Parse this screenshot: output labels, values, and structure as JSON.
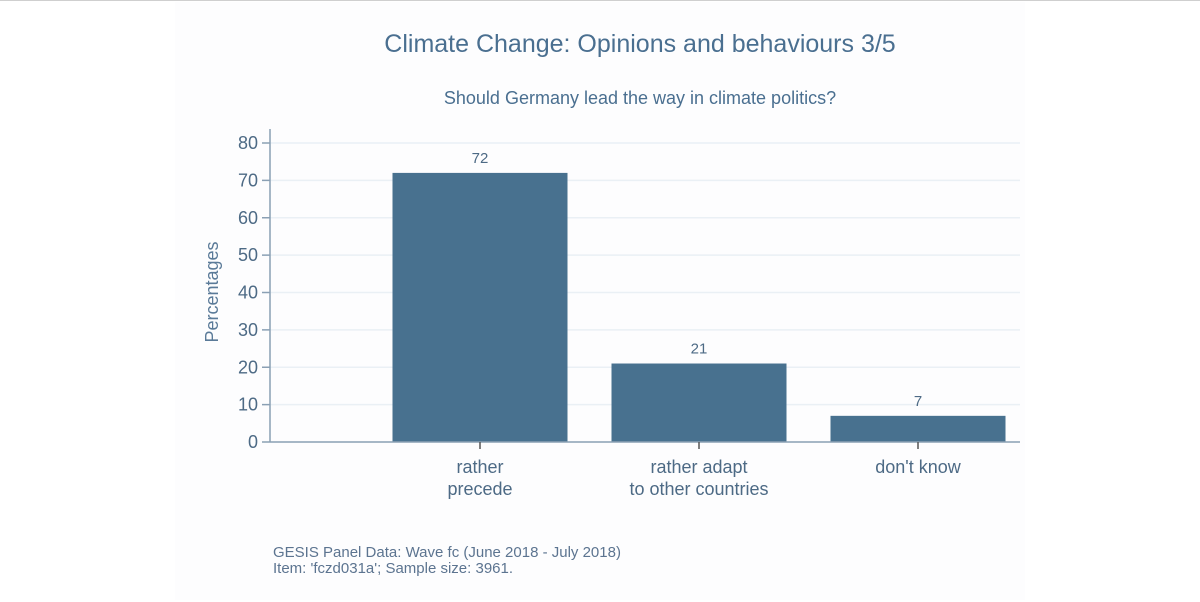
{
  "chart_data": {
    "type": "bar",
    "title": "Climate Change: Opinions and behaviours 3/5",
    "subtitle": "Should Germany lead the way in climate politics?",
    "xlabel": "",
    "ylabel": "Percentages",
    "ylim": [
      0,
      80
    ],
    "yticks": [
      0,
      10,
      20,
      30,
      40,
      50,
      60,
      70,
      80
    ],
    "grid": true,
    "categories": [
      [
        "rather",
        "precede"
      ],
      [
        "rather adapt",
        "to other countries"
      ],
      [
        "don't know"
      ]
    ],
    "values": [
      72,
      21,
      7
    ],
    "data_labels": [
      "72",
      "21",
      "7"
    ],
    "bar_color": "#48718f",
    "notes": [
      "GESIS Panel Data: Wave fc (June 2018 - July 2018)",
      "Item: 'fczd031a'; Sample size: 3961."
    ]
  }
}
